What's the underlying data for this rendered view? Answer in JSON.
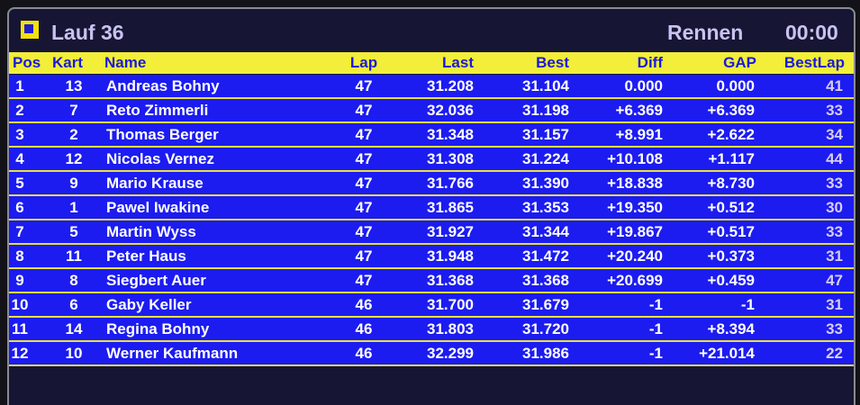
{
  "header": {
    "title": "Lauf 36",
    "mode": "Rennen",
    "time": "00:00"
  },
  "table": {
    "columns": [
      "Pos",
      "Kart",
      "Name",
      "Lap",
      "Last",
      "Best",
      "Diff",
      "GAP",
      "BestLap"
    ],
    "rows": [
      [
        "1",
        "13",
        "Andreas Bohny",
        "47",
        "31.208",
        "31.104",
        "0.000",
        "0.000",
        "41"
      ],
      [
        "2",
        "7",
        "Reto Zimmerli",
        "47",
        "32.036",
        "31.198",
        "+6.369",
        "+6.369",
        "33"
      ],
      [
        "3",
        "2",
        "Thomas Berger",
        "47",
        "31.348",
        "31.157",
        "+8.991",
        "+2.622",
        "34"
      ],
      [
        "4",
        "12",
        "Nicolas Vernez",
        "47",
        "31.308",
        "31.224",
        "+10.108",
        "+1.117",
        "44"
      ],
      [
        "5",
        "9",
        "Mario Krause",
        "47",
        "31.766",
        "31.390",
        "+18.838",
        "+8.730",
        "33"
      ],
      [
        "6",
        "1",
        "Pawel Iwakine",
        "47",
        "31.865",
        "31.353",
        "+19.350",
        "+0.512",
        "30"
      ],
      [
        "7",
        "5",
        "Martin Wyss",
        "47",
        "31.927",
        "31.344",
        "+19.867",
        "+0.517",
        "33"
      ],
      [
        "8",
        "11",
        "Peter Haus",
        "47",
        "31.948",
        "31.472",
        "+20.240",
        "+0.373",
        "31"
      ],
      [
        "9",
        "8",
        "Siegbert Auer",
        "47",
        "31.368",
        "31.368",
        "+20.699",
        "+0.459",
        "47"
      ],
      [
        "10",
        "6",
        "Gaby Keller",
        "46",
        "31.700",
        "31.679",
        "-1",
        "-1",
        "31"
      ],
      [
        "11",
        "14",
        "Regina Bohny",
        "46",
        "31.803",
        "31.720",
        "-1",
        "+8.394",
        "33"
      ],
      [
        "12",
        "10",
        "Werner Kaufmann",
        "46",
        "32.299",
        "31.986",
        "-1",
        "+21.014",
        "22"
      ]
    ]
  }
}
